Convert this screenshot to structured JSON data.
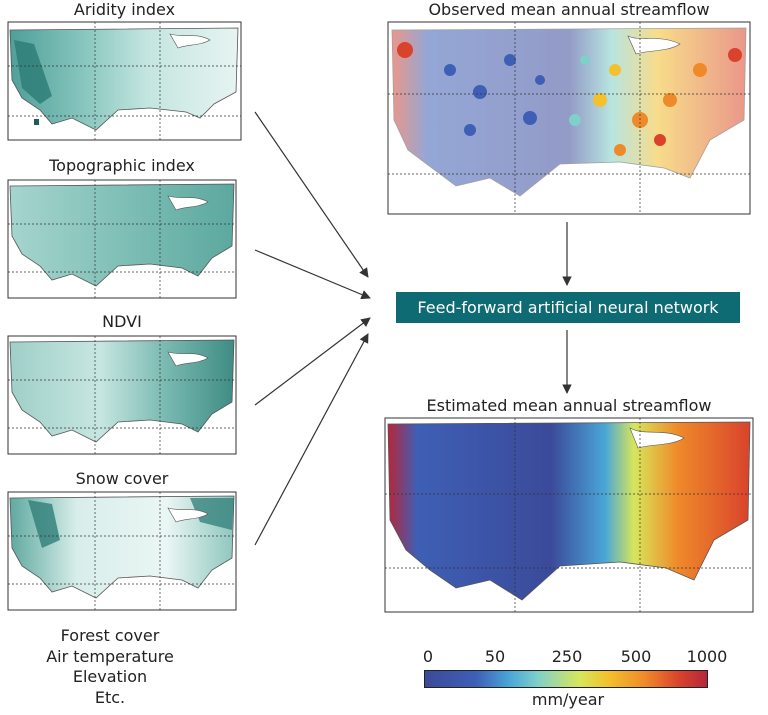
{
  "inputs": [
    {
      "title": "Aridity index"
    },
    {
      "title": "Topographic index"
    },
    {
      "title": "NDVI"
    },
    {
      "title": "Snow cover"
    }
  ],
  "extra_inputs": [
    "Forest cover",
    "Air temperature",
    "Elevation",
    "Etc."
  ],
  "observed": {
    "title": "Observed mean annual streamflow"
  },
  "network": {
    "label": "Feed-forward artificial neural network"
  },
  "estimated": {
    "title": "Estimated mean annual streamflow"
  },
  "colorbar": {
    "ticks": [
      "0",
      "50",
      "250",
      "500",
      "1000"
    ],
    "unit": "mm/year",
    "colors": [
      "#3b4a9a",
      "#3e5fb5",
      "#4aa6d8",
      "#7fd0c8",
      "#d8e65a",
      "#f2c12c",
      "#ef8a2a",
      "#d9432c",
      "#b7263a"
    ]
  },
  "colors": {
    "teal": "#0f6b73",
    "map_teal_light": "#d9efec",
    "map_teal_dark": "#2f7e78"
  }
}
